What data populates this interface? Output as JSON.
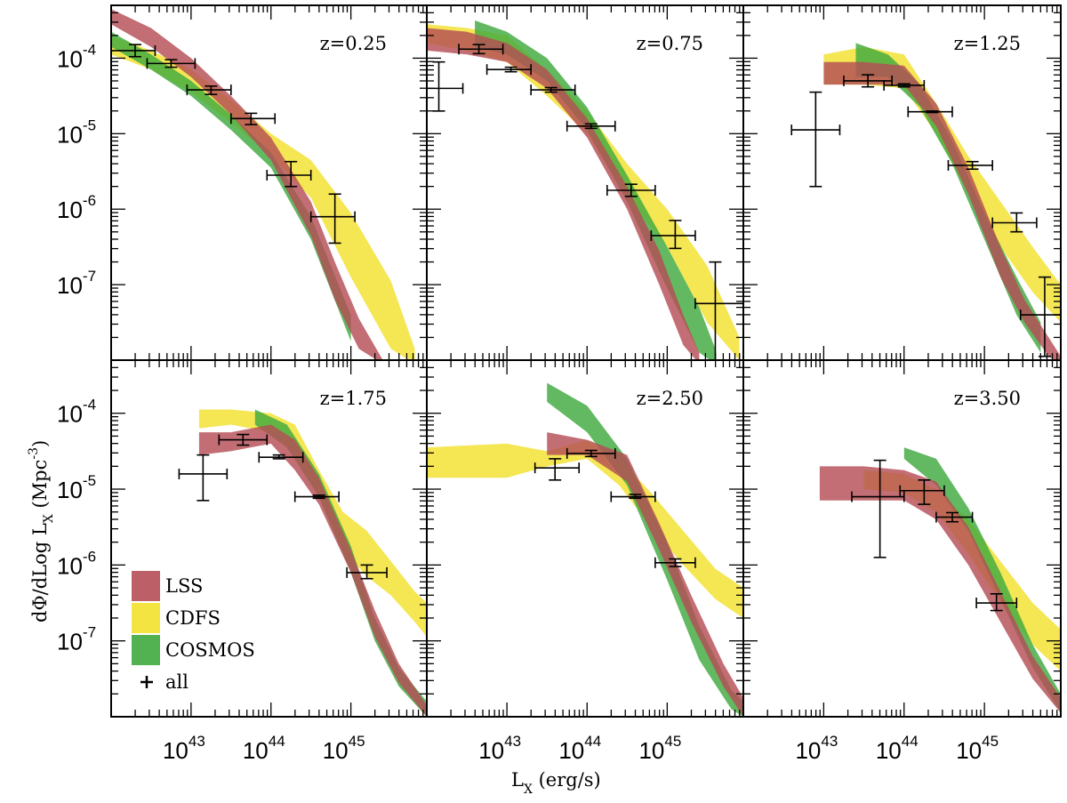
{
  "chart_data": {
    "type": "multi-panel log-log band and errorbar plot",
    "xlabel": {
      "main": "L",
      "sub": "X",
      "unit": " (erg/s)"
    },
    "ylabel": {
      "main": "dΦ/dLog L",
      "sub": "X",
      "unit": " (Mpc",
      "sup": "-3",
      "close": ")"
    },
    "xlim_log": [
      42.0,
      45.95
    ],
    "ylim_log": [
      -8.0,
      -3.3
    ],
    "x_ticks": [
      {
        "base": "10",
        "exp": "43",
        "log": 43
      },
      {
        "base": "10",
        "exp": "44",
        "log": 44
      },
      {
        "base": "10",
        "exp": "45",
        "log": 45
      }
    ],
    "y_ticks": [
      {
        "base": "10",
        "exp": "-4",
        "log": -4
      },
      {
        "base": "10",
        "exp": "-5",
        "log": -5
      },
      {
        "base": "10",
        "exp": "-6",
        "log": -6
      },
      {
        "base": "10",
        "exp": "-7",
        "log": -7
      }
    ],
    "legend": [
      {
        "label": "LSS",
        "color": "#b54e55",
        "kind": "band"
      },
      {
        "label": "CDFS",
        "color": "#f3e12e",
        "kind": "band"
      },
      {
        "label": "COSMOS",
        "color": "#3faa3f",
        "kind": "band"
      },
      {
        "label": "all",
        "color": "#000000",
        "kind": "errorbar"
      }
    ],
    "colors": {
      "LSS": "#b54e55",
      "CDFS": "#f3e12e",
      "COSMOS": "#3faa3f",
      "overlap": "#8a3a1c"
    },
    "panels": [
      {
        "z": "z=0.25",
        "bands": {
          "CDFS": {
            "x": [
              42.0,
              42.5,
              43.0,
              43.5,
              44.0,
              44.5,
              45.0,
              45.5,
              45.8
            ],
            "lo": [
              -3.95,
              -4.15,
              -4.45,
              -4.85,
              -5.3,
              -5.85,
              -6.9,
              -7.85,
              -8.05
            ],
            "hi": [
              -3.7,
              -3.9,
              -4.15,
              -4.55,
              -5.0,
              -5.35,
              -6.05,
              -6.95,
              -7.85
            ]
          },
          "COSMOS": {
            "x": [
              42.0,
              42.5,
              43.0,
              43.5,
              44.0,
              44.5,
              45.0
            ],
            "lo": [
              -3.85,
              -4.15,
              -4.5,
              -4.95,
              -5.45,
              -6.4,
              -7.75
            ],
            "hi": [
              -3.65,
              -3.95,
              -4.3,
              -4.75,
              -5.25,
              -6.1,
              -7.4
            ]
          },
          "LSS": {
            "x": [
              42.0,
              42.5,
              43.0,
              43.5,
              44.0,
              44.5,
              44.8,
              45.1,
              45.4
            ],
            "lo": [
              -3.55,
              -3.85,
              -4.25,
              -4.75,
              -5.35,
              -6.35,
              -7.2,
              -7.85,
              -8.05
            ],
            "hi": [
              -3.35,
              -3.6,
              -4.0,
              -4.5,
              -5.05,
              -5.9,
              -6.7,
              -7.45,
              -8.0
            ]
          }
        },
        "points": [
          {
            "x": 42.3,
            "xlo": 41.95,
            "xhi": 42.55,
            "y": -3.9,
            "ylo": -3.98,
            "yhi": -3.82
          },
          {
            "x": 42.75,
            "xlo": 42.45,
            "xhi": 43.05,
            "y": -4.07,
            "ylo": -4.12,
            "yhi": -4.02
          },
          {
            "x": 43.25,
            "xlo": 42.95,
            "xhi": 43.5,
            "y": -4.42,
            "ylo": -4.48,
            "yhi": -4.37
          },
          {
            "x": 43.75,
            "xlo": 43.5,
            "xhi": 44.05,
            "y": -4.8,
            "ylo": -4.88,
            "yhi": -4.73
          },
          {
            "x": 44.25,
            "xlo": 43.95,
            "xhi": 44.5,
            "y": -5.55,
            "ylo": -5.7,
            "yhi": -5.37
          },
          {
            "x": 44.8,
            "xlo": 44.5,
            "xhi": 45.05,
            "y": -6.1,
            "ylo": -6.45,
            "yhi": -5.8
          }
        ]
      },
      {
        "z": "z=0.75",
        "bands": {
          "CDFS": {
            "x": [
              42.0,
              42.5,
              43.0,
              43.5,
              44.0,
              44.5,
              45.0,
              45.5,
              45.9
            ],
            "lo": [
              -3.8,
              -3.9,
              -4.05,
              -4.5,
              -5.0,
              -5.85,
              -6.5,
              -7.5,
              -8.0
            ],
            "hi": [
              -3.55,
              -3.6,
              -3.7,
              -4.15,
              -4.7,
              -5.4,
              -6.0,
              -6.75,
              -7.7
            ]
          },
          "COSMOS": {
            "x": [
              42.6,
              43.0,
              43.5,
              44.0,
              44.5,
              45.0,
              45.4,
              45.6
            ],
            "lo": [
              -3.85,
              -3.95,
              -4.3,
              -4.95,
              -5.9,
              -7.05,
              -7.9,
              -8.05
            ],
            "hi": [
              -3.5,
              -3.65,
              -4.0,
              -4.65,
              -5.55,
              -6.5,
              -7.3,
              -7.85
            ]
          },
          "LSS": {
            "x": [
              42.0,
              42.5,
              43.0,
              43.5,
              44.0,
              44.5,
              44.9,
              45.2,
              45.4
            ],
            "lo": [
              -3.9,
              -3.95,
              -4.05,
              -4.4,
              -5.05,
              -6.0,
              -7.0,
              -7.8,
              -8.05
            ],
            "hi": [
              -3.6,
              -3.65,
              -3.8,
              -4.15,
              -4.8,
              -5.7,
              -6.55,
              -7.4,
              -7.9
            ]
          }
        },
        "points": [
          {
            "x": 42.15,
            "xlo": 41.95,
            "xhi": 42.45,
            "y": -4.4,
            "ylo": -4.7,
            "yhi": -4.05
          },
          {
            "x": 42.65,
            "xlo": 42.4,
            "xhi": 42.95,
            "y": -3.88,
            "ylo": -3.94,
            "yhi": -3.82
          },
          {
            "x": 43.05,
            "xlo": 42.75,
            "xhi": 43.3,
            "y": -4.15,
            "ylo": -4.18,
            "yhi": -4.12
          },
          {
            "x": 43.55,
            "xlo": 43.3,
            "xhi": 43.85,
            "y": -4.42,
            "ylo": -4.45,
            "yhi": -4.39
          },
          {
            "x": 44.05,
            "xlo": 43.75,
            "xhi": 44.35,
            "y": -4.9,
            "ylo": -4.93,
            "yhi": -4.87
          },
          {
            "x": 44.55,
            "xlo": 44.25,
            "xhi": 44.85,
            "y": -5.75,
            "ylo": -5.83,
            "yhi": -5.67
          },
          {
            "x": 45.1,
            "xlo": 44.8,
            "xhi": 45.35,
            "y": -6.35,
            "ylo": -6.52,
            "yhi": -6.15
          },
          {
            "x": 45.6,
            "xlo": 45.35,
            "xhi": 45.95,
            "y": -7.25,
            "ylo": -8.05,
            "yhi": -6.7
          }
        ]
      },
      {
        "z": "z=1.25",
        "bands": {
          "CDFS": {
            "x": [
              43.0,
              43.5,
              44.0,
              44.4,
              44.8,
              45.2,
              45.6,
              45.95
            ],
            "lo": [
              -4.35,
              -4.35,
              -4.4,
              -5.0,
              -5.8,
              -6.5,
              -7.1,
              -7.5
            ],
            "hi": [
              -3.95,
              -3.85,
              -3.95,
              -4.6,
              -5.3,
              -5.9,
              -6.5,
              -7.0
            ]
          },
          "COSMOS": {
            "x": [
              43.4,
              43.8,
              44.2,
              44.6,
              45.0,
              45.4,
              45.7
            ],
            "lo": [
              -4.25,
              -4.25,
              -4.65,
              -5.4,
              -6.4,
              -7.4,
              -7.9
            ],
            "hi": [
              -3.8,
              -3.95,
              -4.35,
              -5.1,
              -6.05,
              -6.9,
              -7.5
            ]
          },
          "LSS": {
            "x": [
              43.0,
              43.5,
              44.0,
              44.4,
              44.8,
              45.2,
              45.5,
              45.8,
              45.95
            ],
            "lo": [
              -4.35,
              -4.35,
              -4.35,
              -4.9,
              -5.8,
              -6.9,
              -7.5,
              -7.95,
              -8.05
            ],
            "hi": [
              -4.05,
              -4.05,
              -4.1,
              -4.6,
              -5.45,
              -6.5,
              -7.2,
              -7.7,
              -7.95
            ]
          }
        },
        "points": [
          {
            "x": 42.9,
            "xlo": 42.6,
            "xhi": 43.2,
            "y": -4.95,
            "ylo": -5.7,
            "yhi": -4.45
          },
          {
            "x": 43.55,
            "xlo": 43.25,
            "xhi": 43.85,
            "y": -4.3,
            "ylo": -4.38,
            "yhi": -4.22
          },
          {
            "x": 44.0,
            "xlo": 43.75,
            "xhi": 44.25,
            "y": -4.36,
            "ylo": -4.38,
            "yhi": -4.34
          },
          {
            "x": 44.35,
            "xlo": 44.05,
            "xhi": 44.6,
            "y": -4.71,
            "ylo": -4.72,
            "yhi": -4.7
          },
          {
            "x": 44.85,
            "xlo": 44.55,
            "xhi": 45.1,
            "y": -5.42,
            "ylo": -5.47,
            "yhi": -5.37
          },
          {
            "x": 45.4,
            "xlo": 45.1,
            "xhi": 45.65,
            "y": -6.18,
            "ylo": -6.3,
            "yhi": -6.05
          },
          {
            "x": 45.75,
            "xlo": 45.45,
            "xhi": 45.95,
            "y": -7.4,
            "ylo": -7.95,
            "yhi": -6.9
          }
        ]
      },
      {
        "z": "z=1.75",
        "bands": {
          "CDFS": {
            "x": [
              43.1,
              43.5,
              44.0,
              44.3,
              44.6,
              44.9,
              45.2,
              45.5,
              45.8,
              45.95
            ],
            "lo": [
              -4.2,
              -4.15,
              -4.25,
              -4.5,
              -5.1,
              -5.8,
              -6.15,
              -6.4,
              -6.75,
              -6.95
            ],
            "hi": [
              -3.95,
              -3.95,
              -4.0,
              -4.15,
              -4.75,
              -5.3,
              -5.55,
              -5.95,
              -6.35,
              -6.5
            ]
          },
          "COSMOS": {
            "x": [
              43.8,
              44.2,
              44.6,
              45.0,
              45.3,
              45.6,
              45.95
            ],
            "lo": [
              -4.15,
              -4.45,
              -5.1,
              -6.1,
              -7.0,
              -7.6,
              -8.0
            ],
            "hi": [
              -3.95,
              -4.15,
              -4.8,
              -5.75,
              -6.7,
              -7.35,
              -7.8
            ]
          },
          "LSS": {
            "x": [
              43.1,
              43.5,
              44.0,
              44.3,
              44.6,
              45.0,
              45.3,
              45.6,
              45.95
            ],
            "lo": [
              -4.55,
              -4.5,
              -4.4,
              -4.75,
              -5.2,
              -6.1,
              -6.95,
              -7.55,
              -8.0
            ],
            "hi": [
              -4.25,
              -4.25,
              -4.15,
              -4.35,
              -4.85,
              -5.8,
              -6.6,
              -7.3,
              -7.85
            ]
          }
        },
        "points": [
          {
            "x": 43.15,
            "xlo": 42.85,
            "xhi": 43.45,
            "y": -4.8,
            "ylo": -5.15,
            "yhi": -4.55
          },
          {
            "x": 43.65,
            "xlo": 43.35,
            "xhi": 43.95,
            "y": -4.35,
            "ylo": -4.42,
            "yhi": -4.28
          },
          {
            "x": 44.1,
            "xlo": 43.85,
            "xhi": 44.4,
            "y": -4.58,
            "ylo": -4.6,
            "yhi": -4.55
          },
          {
            "x": 44.6,
            "xlo": 44.3,
            "xhi": 44.85,
            "y": -5.1,
            "ylo": -5.12,
            "yhi": -5.08
          },
          {
            "x": 45.2,
            "xlo": 44.95,
            "xhi": 45.45,
            "y": -6.1,
            "ylo": -6.18,
            "yhi": -6.0
          }
        ]
      },
      {
        "z": "z=2.50",
        "bands": {
          "CDFS": {
            "x": [
              42.0,
              43.0,
              43.5,
              44.0,
              44.4,
              44.8,
              45.2,
              45.6,
              45.95
            ],
            "lo": [
              -4.85,
              -4.85,
              -4.7,
              -4.6,
              -4.95,
              -5.5,
              -6.0,
              -6.45,
              -6.7
            ],
            "hi": [
              -4.45,
              -4.4,
              -4.5,
              -4.35,
              -4.6,
              -5.05,
              -5.55,
              -6.05,
              -6.3
            ]
          },
          "COSMOS": {
            "x": [
              43.5,
              44.0,
              44.5,
              45.0,
              45.4,
              45.8,
              45.95
            ],
            "lo": [
              -3.85,
              -4.25,
              -4.95,
              -6.2,
              -7.25,
              -7.9,
              -8.0
            ],
            "hi": [
              -3.6,
              -3.9,
              -4.6,
              -5.7,
              -6.8,
              -7.65,
              -7.8
            ]
          },
          "LSS": {
            "x": [
              43.5,
              44.0,
              44.5,
              44.9,
              45.3,
              45.7,
              45.95
            ],
            "lo": [
              -4.55,
              -4.55,
              -4.9,
              -5.8,
              -6.75,
              -7.6,
              -8.0
            ],
            "hi": [
              -4.25,
              -4.35,
              -4.55,
              -5.45,
              -6.4,
              -7.3,
              -7.75
            ]
          }
        },
        "points": [
          {
            "x": 43.6,
            "xlo": 43.35,
            "xhi": 43.9,
            "y": -4.72,
            "ylo": -4.88,
            "yhi": -4.6
          },
          {
            "x": 44.05,
            "xlo": 43.75,
            "xhi": 44.35,
            "y": -4.53,
            "ylo": -4.57,
            "yhi": -4.49
          },
          {
            "x": 44.6,
            "xlo": 44.3,
            "xhi": 44.85,
            "y": -5.1,
            "ylo": -5.12,
            "yhi": -5.07
          },
          {
            "x": 45.1,
            "xlo": 44.85,
            "xhi": 45.35,
            "y": -5.97,
            "ylo": -6.02,
            "yhi": -5.92
          }
        ]
      },
      {
        "z": "z=3.50",
        "bands": {
          "CDFS": {
            "x": [
              43.5,
              44.0,
              44.4,
              44.8,
              45.2,
              45.6,
              45.95
            ],
            "lo": [
              -5.0,
              -5.05,
              -5.3,
              -5.85,
              -6.5,
              -7.05,
              -7.4
            ],
            "hi": [
              -4.75,
              -4.8,
              -5.0,
              -5.4,
              -5.95,
              -6.5,
              -6.85
            ]
          },
          "COSMOS": {
            "x": [
              44.0,
              44.4,
              44.8,
              45.2,
              45.6,
              45.95
            ],
            "lo": [
              -4.6,
              -4.95,
              -5.55,
              -6.45,
              -7.35,
              -7.95
            ],
            "hi": [
              -4.45,
              -4.6,
              -5.25,
              -6.1,
              -7.05,
              -7.7
            ]
          },
          "LSS": {
            "x": [
              42.95,
              43.5,
              44.0,
              44.4,
              44.8,
              45.2,
              45.6,
              45.95
            ],
            "lo": [
              -5.15,
              -5.15,
              -5.15,
              -5.4,
              -6.0,
              -6.75,
              -7.5,
              -7.95
            ],
            "hi": [
              -4.7,
              -4.7,
              -4.75,
              -4.9,
              -5.5,
              -6.35,
              -7.2,
              -7.75
            ]
          }
        },
        "points": [
          {
            "x": 43.7,
            "xlo": 43.35,
            "xhi": 44.0,
            "y": -5.1,
            "ylo": -5.9,
            "yhi": -4.62
          },
          {
            "x": 44.25,
            "xlo": 43.95,
            "xhi": 44.5,
            "y": -5.02,
            "ylo": -5.2,
            "yhi": -4.88
          },
          {
            "x": 44.6,
            "xlo": 44.4,
            "xhi": 44.85,
            "y": -5.37,
            "ylo": -5.43,
            "yhi": -5.31
          },
          {
            "x": 45.15,
            "xlo": 44.9,
            "xhi": 45.4,
            "y": -6.5,
            "ylo": -6.6,
            "yhi": -6.38
          }
        ]
      }
    ]
  }
}
